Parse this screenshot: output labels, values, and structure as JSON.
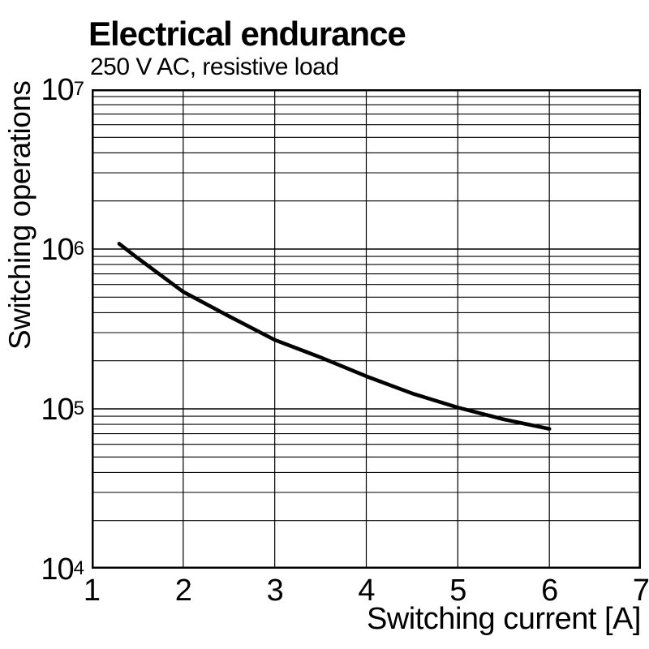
{
  "title": "Electrical endurance",
  "subtitle": "250 V AC, resistive load",
  "chart_data": {
    "type": "line",
    "title": "Electrical endurance",
    "subtitle": "250 V AC, resistive load",
    "xlabel": "Switching current [A]",
    "ylabel": "Switching operations",
    "x_axis": {
      "min": 1,
      "max": 7,
      "ticks": [
        1,
        2,
        3,
        4,
        5,
        6,
        7
      ]
    },
    "y_axis": {
      "scale": "log",
      "min_exponent": 4,
      "max_exponent": 7,
      "tick_base": "10",
      "tick_exponents": [
        7,
        6,
        5,
        4
      ]
    },
    "grid": "log minor gridlines 2-9 per decade, vertical line every 1 A",
    "legend": "none",
    "series": [
      {
        "name": "electrical-endurance-curve",
        "color": "#000000",
        "x": [
          1.3,
          1.5,
          2,
          2.5,
          3,
          3.5,
          4,
          4.5,
          5,
          5.5,
          6
        ],
        "y": [
          1080000,
          880000,
          540000,
          380000,
          270000,
          210000,
          160000,
          125000,
          102000,
          86000,
          75000
        ]
      }
    ],
    "colors": {
      "foreground": "#000000",
      "background": "#ffffff"
    }
  }
}
